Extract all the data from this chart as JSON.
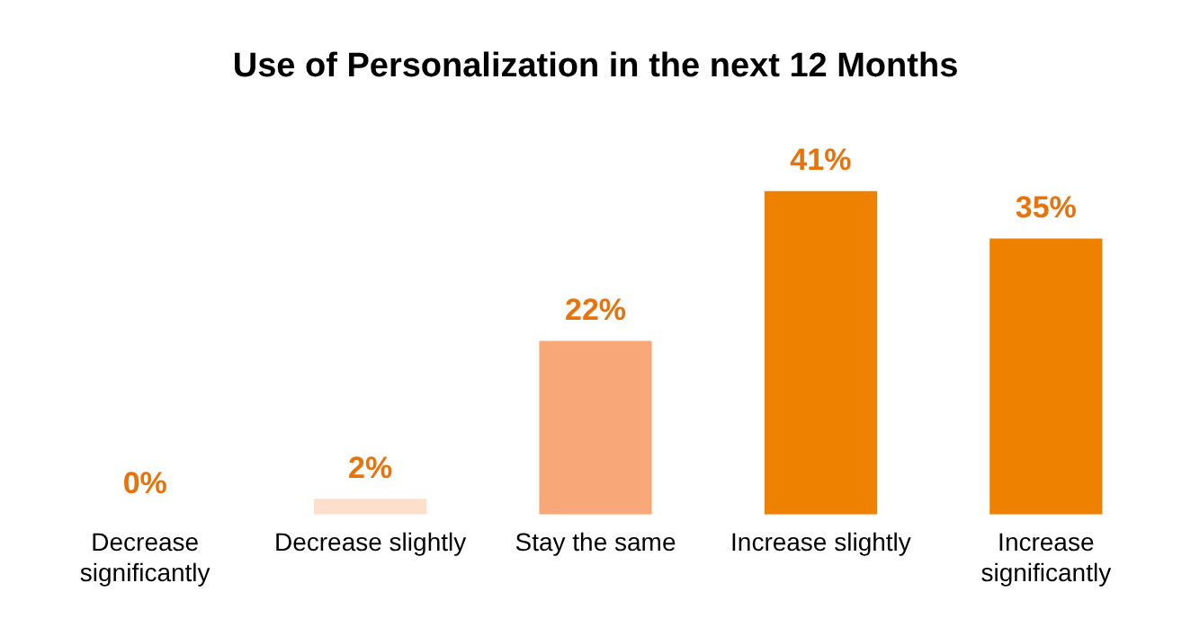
{
  "chart_data": {
    "type": "bar",
    "title": "Use of Personalization in the next 12 Months",
    "categories": [
      "Decrease significantly",
      "Decrease slightly",
      "Stay the same",
      "Increase slightly",
      "Increase significantly"
    ],
    "values": [
      0,
      2,
      22,
      41,
      35
    ],
    "colors": [
      "#ee8100",
      "#fde0cc",
      "#f8a878",
      "#ee8100",
      "#ee8100"
    ],
    "value_labels": [
      "0%",
      "2%",
      "22%",
      "41%",
      "35%"
    ],
    "grid": false,
    "legend": false
  }
}
